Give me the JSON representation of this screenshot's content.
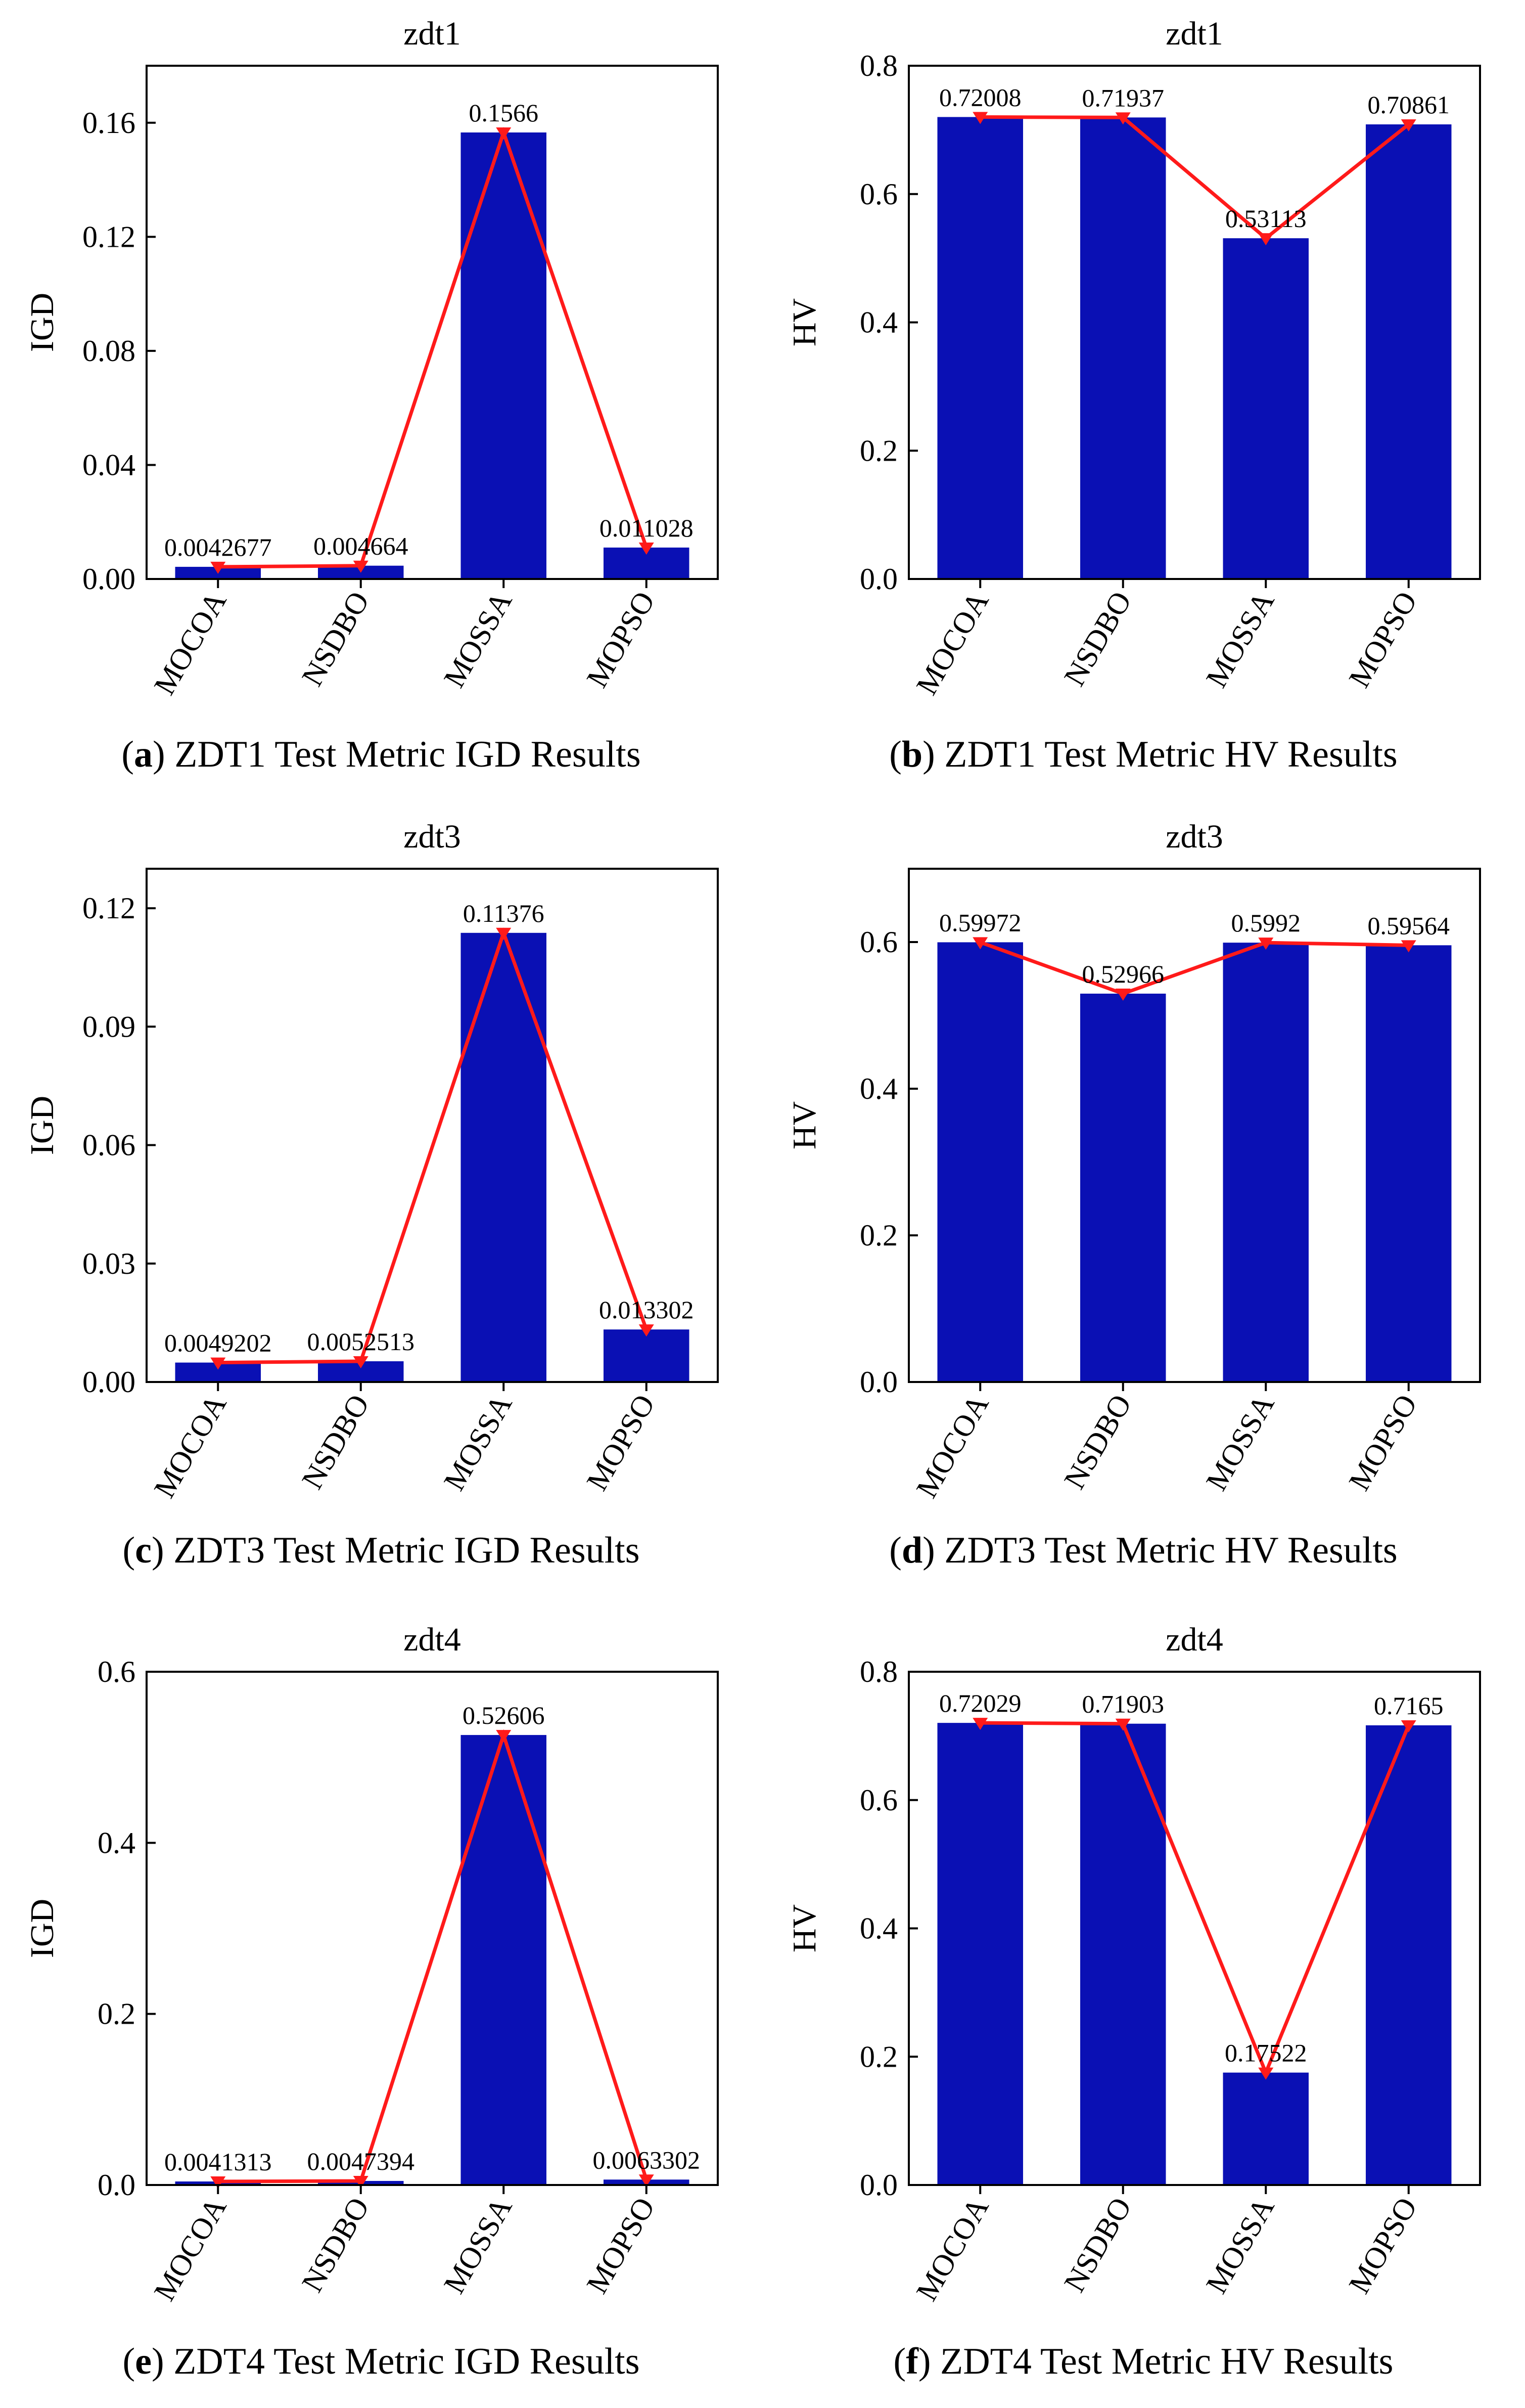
{
  "chart_data": [
    {
      "id": "a",
      "type": "bar",
      "title": "zdt1",
      "ylabel": "IGD",
      "categories": [
        "MOCOA",
        "NSDBO",
        "MOSSA",
        "MOPSO"
      ],
      "values": [
        0.0042677,
        0.004664,
        0.1566,
        0.011028
      ],
      "labels": [
        "0.0042677",
        "0.004664",
        "0.1566",
        "0.011028"
      ],
      "ylim": [
        0,
        0.18
      ],
      "yticks": [
        0,
        0.04,
        0.08,
        0.12,
        0.16
      ],
      "ytick_labels": [
        "0.00",
        "0.04",
        "0.08",
        "0.12",
        "0.16"
      ],
      "line_overlay": true,
      "caption_letter": "a",
      "caption_text": " ZDT1 Test Metric IGD Results"
    },
    {
      "id": "b",
      "type": "bar",
      "title": "zdt1",
      "ylabel": "HV",
      "categories": [
        "MOCOA",
        "NSDBO",
        "MOSSA",
        "MOPSO"
      ],
      "values": [
        0.72008,
        0.71937,
        0.53113,
        0.70861
      ],
      "labels": [
        "0.72008",
        "0.71937",
        "0.53113",
        "0.70861"
      ],
      "ylim": [
        0,
        0.8
      ],
      "yticks": [
        0,
        0.2,
        0.4,
        0.6,
        0.8
      ],
      "ytick_labels": [
        "0.0",
        "0.2",
        "0.4",
        "0.6",
        "0.8"
      ],
      "line_overlay": true,
      "caption_letter": "b",
      "caption_text": " ZDT1 Test Metric HV Results"
    },
    {
      "id": "c",
      "type": "bar",
      "title": "zdt3",
      "ylabel": "IGD",
      "categories": [
        "MOCOA",
        "NSDBO",
        "MOSSA",
        "MOPSO"
      ],
      "values": [
        0.0049202,
        0.0052513,
        0.11376,
        0.013302
      ],
      "labels": [
        "0.0049202",
        "0.0052513",
        "0.11376",
        "0.013302"
      ],
      "ylim": [
        0,
        0.13
      ],
      "yticks": [
        0,
        0.03,
        0.06,
        0.09,
        0.12
      ],
      "ytick_labels": [
        "0.00",
        "0.03",
        "0.06",
        "0.09",
        "0.12"
      ],
      "line_overlay": true,
      "caption_letter": "c",
      "caption_text": " ZDT3 Test Metric IGD Results"
    },
    {
      "id": "d",
      "type": "bar",
      "title": "zdt3",
      "ylabel": "HV",
      "categories": [
        "MOCOA",
        "NSDBO",
        "MOSSA",
        "MOPSO"
      ],
      "values": [
        0.59972,
        0.52966,
        0.5992,
        0.59564
      ],
      "labels": [
        "0.59972",
        "0.52966",
        "0.5992",
        "0.59564"
      ],
      "ylim": [
        0,
        0.7
      ],
      "yticks": [
        0,
        0.2,
        0.4,
        0.6
      ],
      "ytick_labels": [
        "0.0",
        "0.2",
        "0.4",
        "0.6"
      ],
      "line_overlay": true,
      "caption_letter": "d",
      "caption_text": " ZDT3 Test Metric HV Results"
    },
    {
      "id": "e",
      "type": "bar",
      "title": "zdt4",
      "ylabel": "IGD",
      "categories": [
        "MOCOA",
        "NSDBO",
        "MOSSA",
        "MOPSO"
      ],
      "values": [
        0.0041313,
        0.0047394,
        0.52606,
        0.0063302
      ],
      "labels": [
        "0.0041313",
        "0.0047394",
        "0.52606",
        "0.0063302"
      ],
      "ylim": [
        0,
        0.6
      ],
      "yticks": [
        0,
        0.2,
        0.4,
        0.6
      ],
      "ytick_labels": [
        "0.0",
        "0.2",
        "0.4",
        "0.6"
      ],
      "line_overlay": true,
      "caption_letter": "e",
      "caption_text": " ZDT4 Test Metric IGD Results"
    },
    {
      "id": "f",
      "type": "bar",
      "title": "zdt4",
      "ylabel": "HV",
      "categories": [
        "MOCOA",
        "NSDBO",
        "MOSSA",
        "MOPSO"
      ],
      "values": [
        0.72029,
        0.71903,
        0.17522,
        0.7165
      ],
      "labels": [
        "0.72029",
        "0.71903",
        "0.17522",
        "0.7165"
      ],
      "ylim": [
        0,
        0.8
      ],
      "yticks": [
        0,
        0.2,
        0.4,
        0.6,
        0.8
      ],
      "ytick_labels": [
        "0.0",
        "0.2",
        "0.4",
        "0.6",
        "0.8"
      ],
      "line_overlay": true,
      "caption_letter": "f",
      "caption_text": " ZDT4 Test Metric HV Results"
    }
  ],
  "colors": {
    "bar": "#0a10b4",
    "line": "#ff1a1a",
    "axis": "#000000"
  }
}
